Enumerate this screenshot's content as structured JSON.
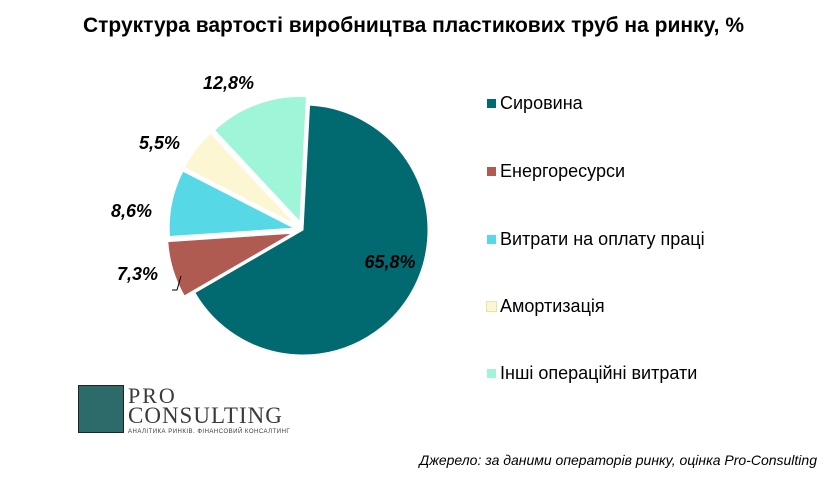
{
  "chart_data": {
    "type": "pie",
    "title": "Структура вартості виробництва пластикових труб на ринку, %",
    "categories": [
      "Сировина",
      "Енергоресурси",
      "Витрати на оплату праці",
      "Амортизація",
      "Інші операційні витрати"
    ],
    "values": [
      65.8,
      7.3,
      8.6,
      5.5,
      12.8
    ],
    "labels": [
      "65,8%",
      "7,3%",
      "8,6%",
      "5,5%",
      "12,8%"
    ],
    "colors": [
      "#006a70",
      "#b05b52",
      "#56d8e6",
      "#fdf6d2",
      "#9ff5d7"
    ],
    "legend": "right"
  },
  "logo": {
    "pro": "PRO",
    "consulting": "CONSULTING",
    "tagline": "АНАЛІТИКА РИНКІВ. ФІНАНСОВИЙ КОНСАЛТИНГ"
  },
  "source": "Джерело: за даними операторів ринку, оцінка Pro-Consulting"
}
